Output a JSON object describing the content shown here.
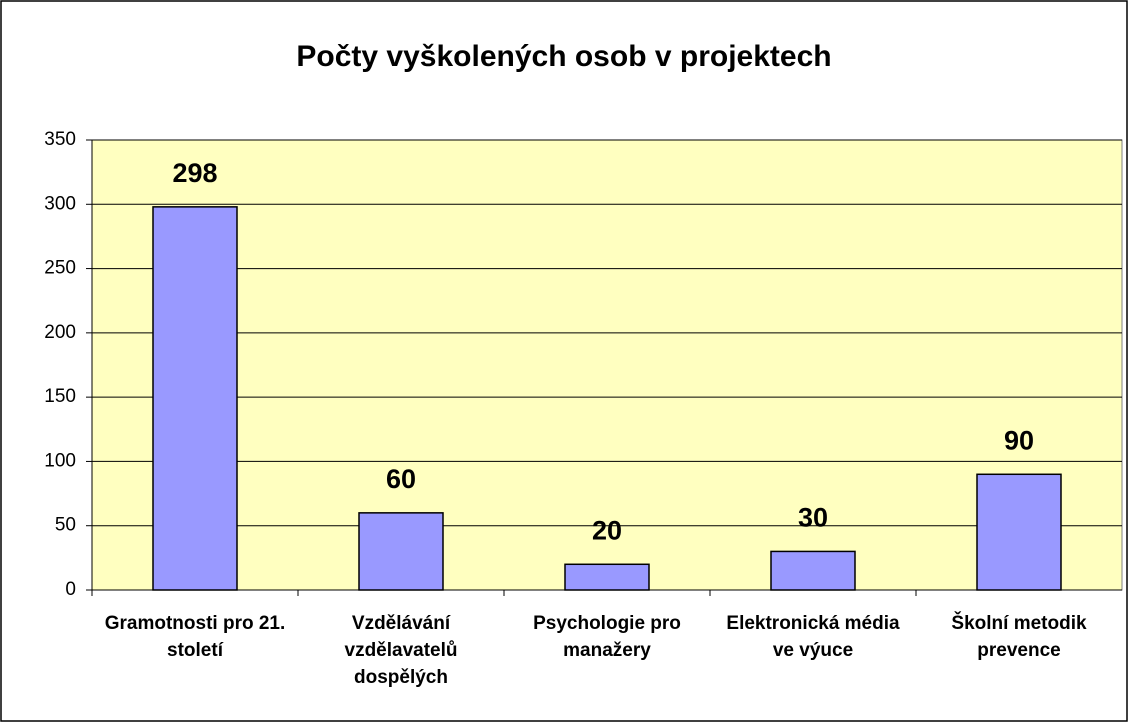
{
  "chart_data": {
    "type": "bar",
    "title": "Počty vyškolených osob v projektech",
    "categories": [
      "Gramotnosti pro 21. století",
      "Vzdělávání vzdělavatelů dospělých",
      "Psychologie pro manažery",
      "Elektronická média ve výuce",
      "Školní metodik prevence"
    ],
    "values": [
      298,
      60,
      20,
      30,
      90
    ],
    "color": "#9999ff",
    "plot_background": "#ffffc0",
    "ylim": [
      0,
      350
    ],
    "yticks": [
      0,
      50,
      100,
      150,
      200,
      250,
      300,
      350
    ],
    "grid": true
  }
}
